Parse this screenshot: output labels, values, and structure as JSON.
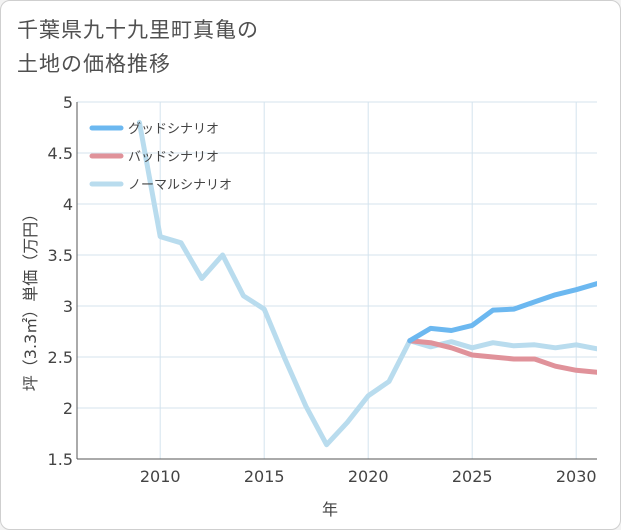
{
  "title_lines": [
    "千葉県九十九里町真亀の",
    "土地の価格推移"
  ],
  "chart_data": {
    "type": "line",
    "xlabel": "年",
    "ylabel": "坪（3.3㎡）単価（万円）",
    "xlim": [
      2006,
      2031
    ],
    "ylim": [
      1.5,
      5
    ],
    "xticks": [
      2010,
      2015,
      2020,
      2025,
      2030
    ],
    "yticks": [
      1.5,
      2,
      2.5,
      3,
      3.5,
      4,
      4.5,
      5
    ],
    "ytick_labels": [
      "1.5",
      "2",
      "2.5",
      "3",
      "3.5",
      "4",
      "4.5",
      "5"
    ],
    "grid": true,
    "legend_position": "top-left",
    "series": [
      {
        "name": "グッドシナリオ",
        "color": "#6cb8f0",
        "x": [
          2022,
          2023,
          2024,
          2025,
          2026,
          2027,
          2028,
          2029,
          2030,
          2031
        ],
        "y": [
          2.66,
          2.78,
          2.76,
          2.81,
          2.96,
          2.97,
          3.04,
          3.11,
          3.16,
          3.22
        ]
      },
      {
        "name": "バッドシナリオ",
        "color": "#e0929a",
        "x": [
          2022,
          2023,
          2024,
          2025,
          2026,
          2027,
          2028,
          2029,
          2030,
          2031
        ],
        "y": [
          2.66,
          2.64,
          2.59,
          2.52,
          2.5,
          2.48,
          2.48,
          2.41,
          2.37,
          2.35
        ]
      },
      {
        "name": "ノーマルシナリオ",
        "color": "#b9dcee",
        "x": [
          2009,
          2010,
          2011,
          2012,
          2013,
          2014,
          2015,
          2016,
          2017,
          2018,
          2019,
          2020,
          2021,
          2022,
          2023,
          2024,
          2025,
          2026,
          2027,
          2028,
          2029,
          2030,
          2031
        ],
        "y": [
          4.8,
          3.68,
          3.62,
          3.27,
          3.5,
          3.1,
          2.97,
          2.48,
          2.02,
          1.64,
          1.86,
          2.12,
          2.26,
          2.66,
          2.6,
          2.65,
          2.59,
          2.64,
          2.61,
          2.62,
          2.59,
          2.62,
          2.58
        ]
      }
    ]
  }
}
